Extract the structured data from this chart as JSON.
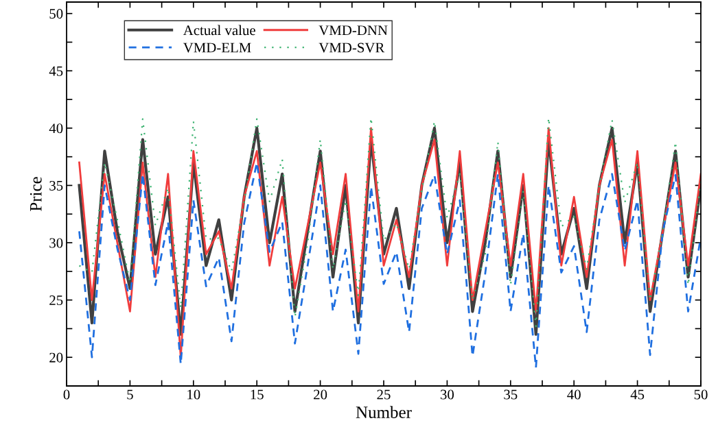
{
  "chart_data": {
    "type": "line",
    "xlabel": "Number",
    "ylabel": "Price",
    "x": [
      1,
      2,
      3,
      4,
      5,
      6,
      7,
      8,
      9,
      10,
      11,
      12,
      13,
      14,
      15,
      16,
      17,
      18,
      19,
      20,
      21,
      22,
      23,
      24,
      25,
      26,
      27,
      28,
      29,
      30,
      31,
      32,
      33,
      34,
      35,
      36,
      37,
      38,
      39,
      40,
      41,
      42,
      43,
      44,
      45,
      46,
      47,
      48,
      49,
      50
    ],
    "series": [
      {
        "name": "Actual value",
        "color": "#404040",
        "line_style": "solid",
        "values": [
          35,
          23,
          38,
          31,
          26,
          39,
          29,
          34,
          22,
          37,
          28,
          32,
          25,
          34,
          40,
          30,
          36,
          24,
          31,
          38,
          27,
          35,
          23,
          39,
          29,
          33,
          26,
          35,
          40,
          30,
          37,
          24,
          30,
          38,
          27,
          35,
          22,
          39,
          29,
          33,
          26,
          35,
          40,
          30,
          37,
          24,
          31,
          38,
          27,
          35
        ]
      },
      {
        "name": "VMD-DNN",
        "color": "#f03c3c",
        "line_style": "solid",
        "values": [
          37,
          25,
          36,
          30,
          24,
          37,
          27,
          36,
          20,
          38,
          29,
          31,
          26,
          34,
          38,
          28,
          34,
          26,
          31.5,
          37,
          29,
          36,
          24,
          40,
          28,
          32,
          27,
          35,
          39,
          28,
          38,
          25,
          31,
          37,
          28,
          36,
          24,
          40,
          28,
          34,
          27,
          35,
          39,
          28,
          38,
          25,
          31,
          37,
          28,
          36
        ]
      },
      {
        "name": "VMD-ELM",
        "color": "#1f6fe0",
        "line_style": "dashed",
        "values": [
          31,
          20,
          35,
          29.5,
          25,
          36,
          26.3,
          31.8,
          19.4,
          33.7,
          26.2,
          28.7,
          21.4,
          31.7,
          37,
          29.2,
          31.8,
          21.2,
          28,
          35,
          24,
          29.4,
          20.3,
          34.9,
          26.4,
          29.2,
          22.2,
          33,
          35.9,
          29,
          33.7,
          20.1,
          27.3,
          36,
          24,
          30.8,
          19.1,
          35,
          27.4,
          29.7,
          22.2,
          32,
          36,
          29.3,
          33.7,
          20.2,
          31,
          35.9,
          24,
          30.5
        ]
      },
      {
        "name": "VMD-SVR",
        "color": "#3cb371",
        "line_style": "dotted",
        "values": [
          28,
          27.4,
          37,
          32,
          26.5,
          40.8,
          31.5,
          34.8,
          24.3,
          40.6,
          30.3,
          30.4,
          27.5,
          33.6,
          40.8,
          33.6,
          37.3,
          23.5,
          30,
          39,
          27.7,
          33.7,
          25.4,
          40.9,
          30.2,
          31.7,
          27.7,
          34.6,
          40.6,
          32.2,
          36,
          25,
          29,
          38.8,
          26.3,
          34.5,
          22.7,
          40.9,
          31.4,
          32.3,
          27.7,
          35,
          40.7,
          33.5,
          37,
          25,
          31,
          38.8,
          26.3,
          35.5
        ]
      }
    ],
    "xlim": [
      0,
      50
    ],
    "xticks": [
      0,
      {
        "value": 2.5,
        "label": null
      },
      5,
      {
        "value": 7.5,
        "label": null
      },
      10,
      {
        "value": 12.5,
        "label": null
      },
      15,
      {
        "value": 17.5,
        "label": null
      },
      20,
      {
        "value": 22.5,
        "label": null
      },
      25,
      {
        "value": 27.5,
        "label": null
      },
      30,
      {
        "value": 32.5,
        "label": null
      },
      35,
      {
        "value": 37.5,
        "label": null
      },
      40,
      {
        "value": 42.5,
        "label": null
      },
      45,
      {
        "value": 47.5,
        "label": null
      },
      50
    ],
    "ylim": [
      17.5,
      51
    ],
    "yticks": [
      20,
      {
        "value": 22.5,
        "label": null
      },
      25,
      {
        "value": 27.5,
        "label": null
      },
      30,
      {
        "value": 32.5,
        "label": null
      },
      35,
      {
        "value": 37.5,
        "label": null
      },
      40,
      {
        "value": 42.5,
        "label": null
      },
      45,
      {
        "value": 47.5,
        "label": null
      },
      50
    ],
    "grid": false,
    "legend": "top left",
    "marker": "none"
  }
}
